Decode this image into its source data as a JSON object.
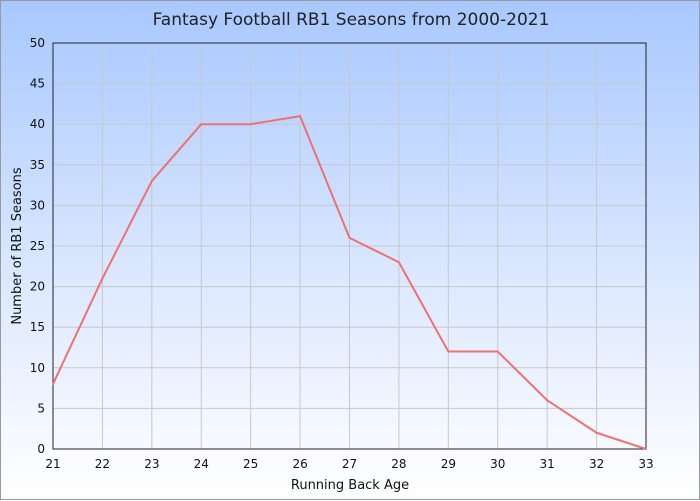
{
  "chart_data": {
    "type": "line",
    "title": "Fantasy Football RB1 Seasons from 2000-2021",
    "xlabel": "Running Back Age",
    "ylabel": "Number of RB1 Seasons",
    "x": [
      21,
      22,
      23,
      24,
      25,
      26,
      27,
      28,
      29,
      30,
      31,
      32,
      33
    ],
    "series": [
      {
        "values": [
          8,
          21,
          33,
          40,
          40,
          41,
          26,
          23,
          12,
          12,
          6,
          2,
          0
        ]
      }
    ],
    "xlim": [
      21,
      33
    ],
    "ylim": [
      0,
      50
    ],
    "yticks": [
      0,
      5,
      10,
      15,
      20,
      25,
      30,
      35,
      40,
      45,
      50
    ],
    "grid": true,
    "line_color": "#f07070"
  }
}
